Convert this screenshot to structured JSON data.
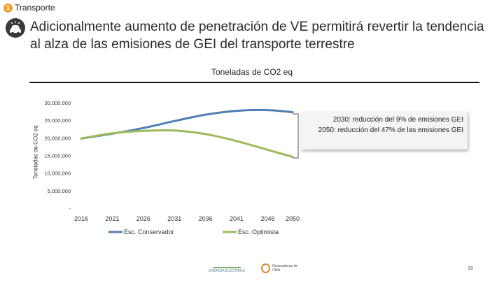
{
  "header": {
    "badge_number": "1",
    "section": "Transporte",
    "title": "Adicionalmente aumento de penetración de VE permitirá revertir la tendencia al alza de las emisiones de GEI del transporte terrestre"
  },
  "annotation": {
    "line1": "2030: reducción del 9% de emisiones GEI",
    "line2": "2050: reducción del 47% de las emisiones GEI"
  },
  "logos": {
    "left": "ENERGIA ELECTRICA",
    "right": "Generadoras de Chile"
  },
  "page_number": "28",
  "colors": {
    "conservador": "#4f7fb5",
    "optimista": "#9bbb59"
  },
  "chart_data": {
    "type": "line",
    "title": "Toneladas de CO2 eq",
    "ylabel": "Toneladas de CO2 eq",
    "xlabel": "",
    "x_tick_labels": [
      "2016",
      "2021",
      "2026",
      "2031",
      "2036",
      "2041",
      "2046",
      "2050"
    ],
    "y_tick_labels": [
      "-",
      "5,000,000",
      "10,000,000",
      "15,000,000",
      "20,000,000",
      "25,000,000",
      "30,000,000"
    ],
    "ylim": [
      0,
      30000000
    ],
    "xlim": [
      2016,
      2050
    ],
    "series": [
      {
        "name": "Esc. Conservador",
        "x": [
          2016,
          2021,
          2026,
          2031,
          2036,
          2041,
          2046,
          2050
        ],
        "values": [
          19800000,
          21200000,
          22800000,
          24800000,
          26600000,
          27700000,
          27900000,
          27300000
        ]
      },
      {
        "name": "Esc. Optimista",
        "x": [
          2016,
          2021,
          2026,
          2031,
          2036,
          2041,
          2046,
          2050
        ],
        "values": [
          19800000,
          21300000,
          22000000,
          22100000,
          21100000,
          19100000,
          16600000,
          14600000
        ]
      }
    ],
    "legend_position": "bottom"
  }
}
